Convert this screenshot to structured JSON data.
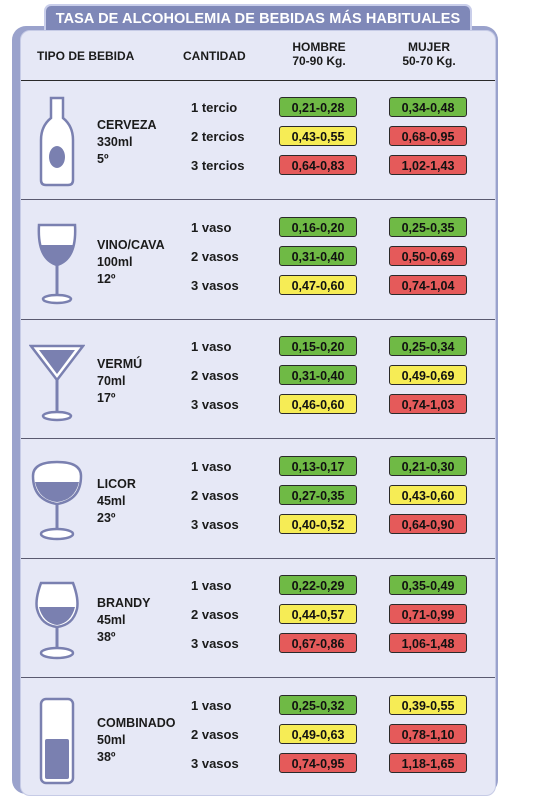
{
  "title": "TASA DE ALCOHOLEMIA DE BEBIDAS MÁS HABITUALES",
  "header": {
    "tipo": "TIPO DE BEBIDA",
    "cantidad": "CANTIDAD",
    "hombre_l1": "HOMBRE",
    "hombre_l2": "70-90 Kg.",
    "mujer_l1": "MUJER",
    "mujer_l2": "50-70 Kg."
  },
  "colors": {
    "green": "#6fba45",
    "yellow": "#f6ec55",
    "red": "#e55a5a",
    "accent": "#9aa2cc"
  },
  "drinks": [
    {
      "name": "CERVEZA",
      "volume": "330ml",
      "degree": "5º",
      "icon": "beer-bottle-icon",
      "rows": [
        {
          "qty": "1 tercio",
          "hombre": "0,21-0,28",
          "hombre_level": "green",
          "mujer": "0,34-0,48",
          "mujer_level": "green"
        },
        {
          "qty": "2 tercios",
          "hombre": "0,43-0,55",
          "hombre_level": "yellow",
          "mujer": "0,68-0,95",
          "mujer_level": "red"
        },
        {
          "qty": "3 tercios",
          "hombre": "0,64-0,83",
          "hombre_level": "red",
          "mujer": "1,02-1,43",
          "mujer_level": "red"
        }
      ]
    },
    {
      "name": "VINO/CAVA",
      "volume": "100ml",
      "degree": "12º",
      "icon": "wine-glass-icon",
      "rows": [
        {
          "qty": "1 vaso",
          "hombre": "0,16-0,20",
          "hombre_level": "green",
          "mujer": "0,25-0,35",
          "mujer_level": "green"
        },
        {
          "qty": "2 vasos",
          "hombre": "0,31-0,40",
          "hombre_level": "green",
          "mujer": "0,50-0,69",
          "mujer_level": "red"
        },
        {
          "qty": "3 vasos",
          "hombre": "0,47-0,60",
          "hombre_level": "yellow",
          "mujer": "0,74-1,04",
          "mujer_level": "red"
        }
      ]
    },
    {
      "name": "VERMÚ",
      "volume": "70ml",
      "degree": "17º",
      "icon": "martini-glass-icon",
      "rows": [
        {
          "qty": "1 vaso",
          "hombre": "0,15-0,20",
          "hombre_level": "green",
          "mujer": "0,25-0,34",
          "mujer_level": "green"
        },
        {
          "qty": "2 vasos",
          "hombre": "0,31-0,40",
          "hombre_level": "green",
          "mujer": "0,49-0,69",
          "mujer_level": "yellow"
        },
        {
          "qty": "3 vasos",
          "hombre": "0,46-0,60",
          "hombre_level": "yellow",
          "mujer": "0,74-1,03",
          "mujer_level": "red"
        }
      ]
    },
    {
      "name": "LICOR",
      "volume": "45ml",
      "degree": "23º",
      "icon": "liqueur-glass-icon",
      "rows": [
        {
          "qty": "1 vaso",
          "hombre": "0,13-0,17",
          "hombre_level": "green",
          "mujer": "0,21-0,30",
          "mujer_level": "green"
        },
        {
          "qty": "2 vasos",
          "hombre": "0,27-0,35",
          "hombre_level": "green",
          "mujer": "0,43-0,60",
          "mujer_level": "yellow"
        },
        {
          "qty": "3 vasos",
          "hombre": "0,40-0,52",
          "hombre_level": "yellow",
          "mujer": "0,64-0,90",
          "mujer_level": "red"
        }
      ]
    },
    {
      "name": "BRANDY",
      "volume": "45ml",
      "degree": "38º",
      "icon": "brandy-glass-icon",
      "rows": [
        {
          "qty": "1 vaso",
          "hombre": "0,22-0,29",
          "hombre_level": "green",
          "mujer": "0,35-0,49",
          "mujer_level": "green"
        },
        {
          "qty": "2 vasos",
          "hombre": "0,44-0,57",
          "hombre_level": "yellow",
          "mujer": "0,71-0,99",
          "mujer_level": "red"
        },
        {
          "qty": "3 vasos",
          "hombre": "0,67-0,86",
          "hombre_level": "red",
          "mujer": "1,06-1,48",
          "mujer_level": "red"
        }
      ]
    },
    {
      "name": "COMBINADO",
      "volume": "50ml",
      "degree": "38º",
      "icon": "highball-glass-icon",
      "rows": [
        {
          "qty": "1 vaso",
          "hombre": "0,25-0,32",
          "hombre_level": "green",
          "mujer": "0,39-0,55",
          "mujer_level": "yellow"
        },
        {
          "qty": "2 vasos",
          "hombre": "0,49-0,63",
          "hombre_level": "yellow",
          "mujer": "0,78-1,10",
          "mujer_level": "red"
        },
        {
          "qty": "3 vasos",
          "hombre": "0,74-0,95",
          "hombre_level": "red",
          "mujer": "1,18-1,65",
          "mujer_level": "red"
        }
      ]
    }
  ]
}
